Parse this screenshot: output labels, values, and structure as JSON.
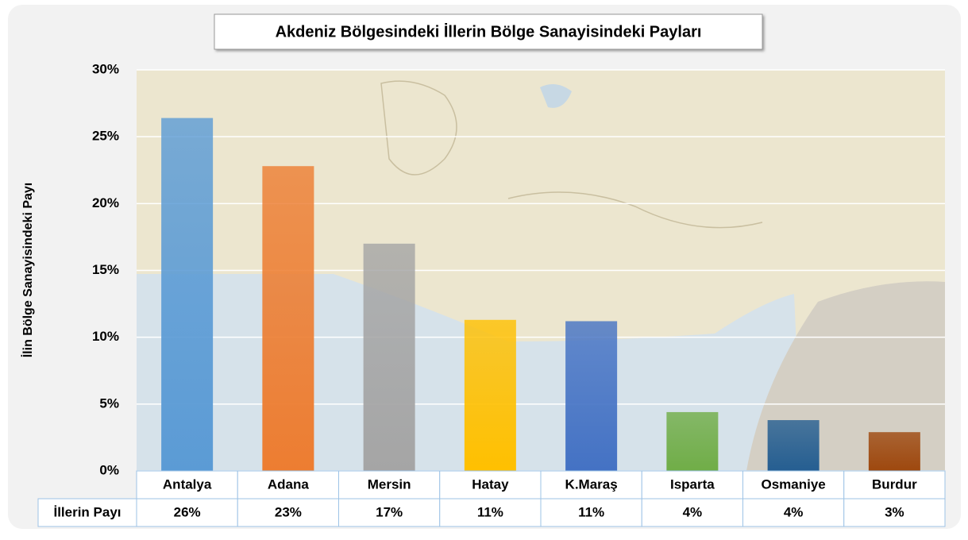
{
  "chart_data": {
    "type": "bar",
    "title": "Akdeniz Bölgesindeki İllerin Bölge Sanayisindeki Payları",
    "y_label": "İlin Bölge Sanayisindeki Payı",
    "table_row_label": "İllerin Payı",
    "categories": [
      "Antalya",
      "Adana",
      "Mersin",
      "Hatay",
      "K.Maraş",
      "Isparta",
      "Osmaniye",
      "Burdur"
    ],
    "values": [
      26.4,
      22.8,
      17.0,
      11.3,
      11.2,
      4.4,
      3.8,
      2.9
    ],
    "value_labels": [
      "26%",
      "23%",
      "17%",
      "11%",
      "11%",
      "4%",
      "4%",
      "3%"
    ],
    "colors": [
      "#5b9bd5",
      "#ed7d31",
      "#a5a5a5",
      "#ffc000",
      "#4472c4",
      "#70ad47",
      "#255e91",
      "#9e480e"
    ],
    "ylim": [
      0,
      30
    ],
    "yticks": [
      {
        "value": 0,
        "label": "0%"
      },
      {
        "value": 5,
        "label": "5%"
      },
      {
        "value": 10,
        "label": "10%"
      },
      {
        "value": 15,
        "label": "15%"
      },
      {
        "value": 20,
        "label": "20%"
      },
      {
        "value": 25,
        "label": "25%"
      },
      {
        "value": 30,
        "label": "30%"
      }
    ],
    "grid": true
  }
}
